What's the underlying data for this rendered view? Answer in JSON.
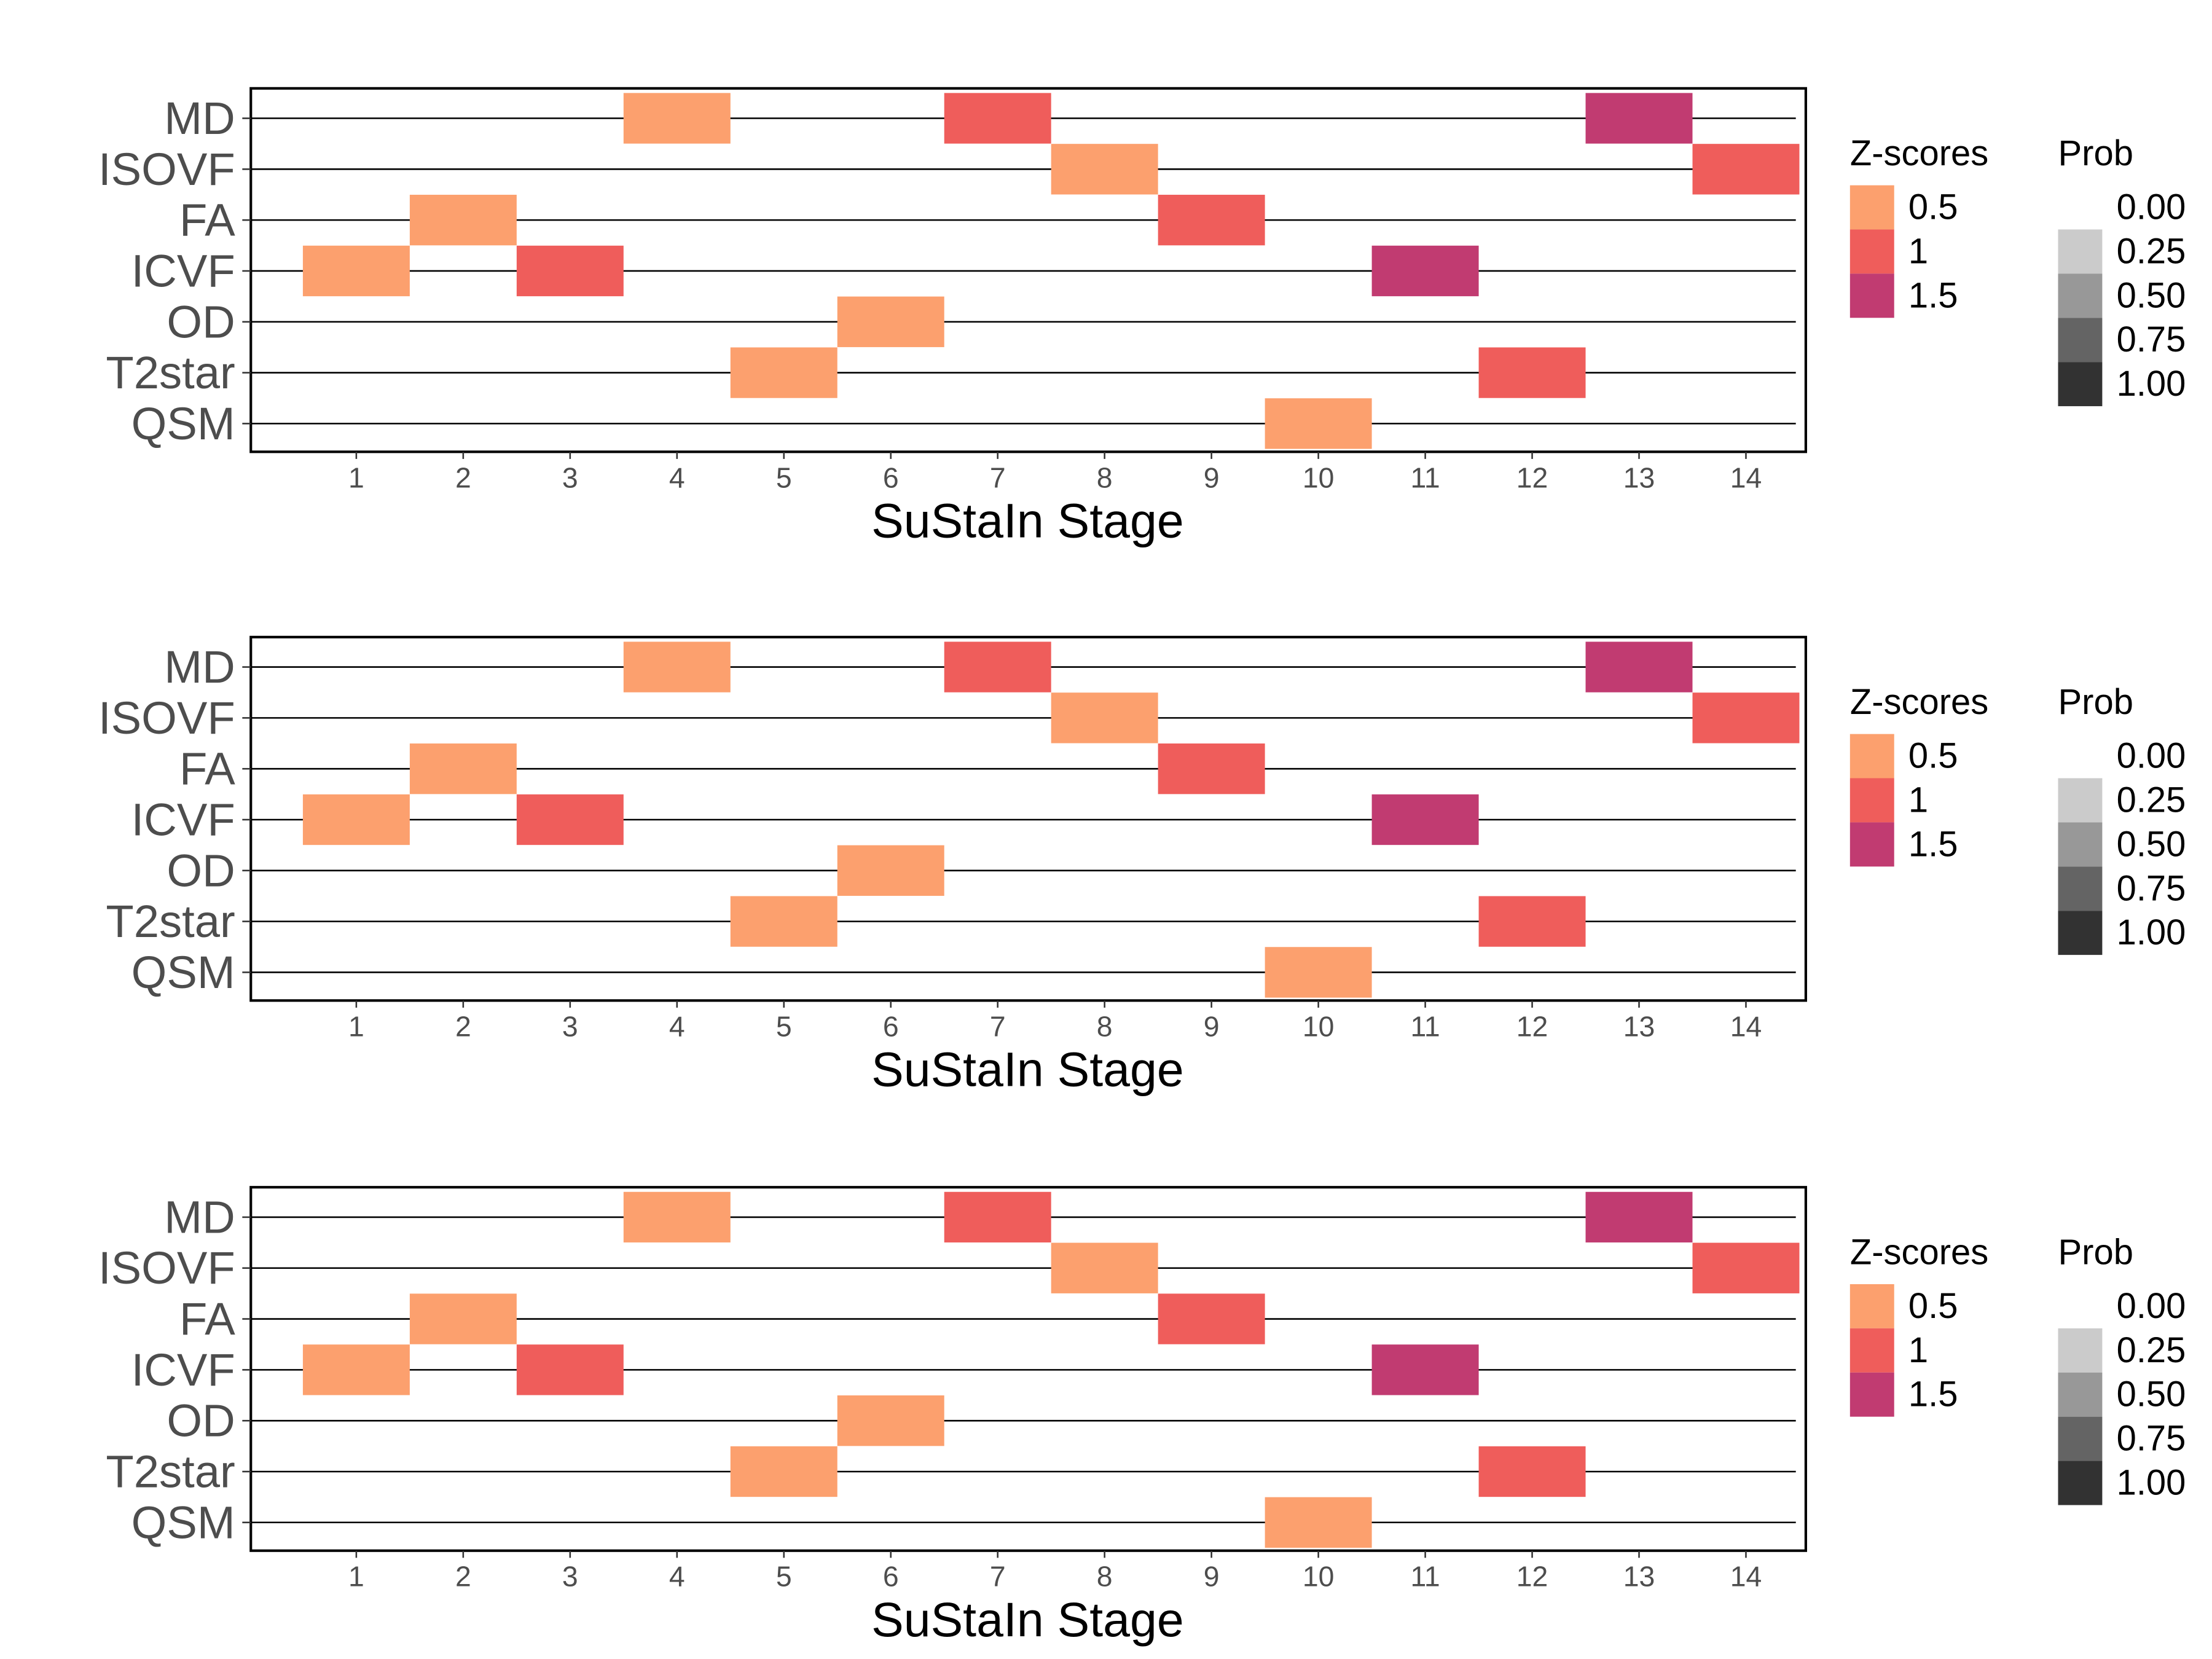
{
  "chart_data": [
    {
      "type": "heatmap",
      "title": "",
      "xlabel": "SuStaIn Stage",
      "ylabel": "",
      "x_categories": [
        "1",
        "2",
        "3",
        "4",
        "5",
        "6",
        "7",
        "8",
        "9",
        "10",
        "11",
        "12",
        "13",
        "14"
      ],
      "y_categories": [
        "MD",
        "ISOVF",
        "FA",
        "ICVF",
        "OD",
        "T2star",
        "QSM"
      ],
      "cells": [
        {
          "biomarker": "MD",
          "stage": 4,
          "z": 0.5
        },
        {
          "biomarker": "MD",
          "stage": 7,
          "z": 1
        },
        {
          "biomarker": "MD",
          "stage": 13,
          "z": 1.5
        },
        {
          "biomarker": "ISOVF",
          "stage": 8,
          "z": 0.5
        },
        {
          "biomarker": "ISOVF",
          "stage": 14,
          "z": 1
        },
        {
          "biomarker": "FA",
          "stage": 2,
          "z": 0.5
        },
        {
          "biomarker": "FA",
          "stage": 9,
          "z": 1
        },
        {
          "biomarker": "ICVF",
          "stage": 1,
          "z": 0.5
        },
        {
          "biomarker": "ICVF",
          "stage": 3,
          "z": 1
        },
        {
          "biomarker": "ICVF",
          "stage": 11,
          "z": 1.5
        },
        {
          "biomarker": "OD",
          "stage": 6,
          "z": 0.5
        },
        {
          "biomarker": "T2star",
          "stage": 5,
          "z": 0.5
        },
        {
          "biomarker": "T2star",
          "stage": 12,
          "z": 1
        },
        {
          "biomarker": "QSM",
          "stage": 10,
          "z": 0.5
        }
      ],
      "legends": [
        {
          "title": "Z-scores",
          "entries": [
            {
              "label": "0.5",
              "color": "#FCA06E"
            },
            {
              "label": "1",
              "color": "#EF5D5B"
            },
            {
              "label": "1.5",
              "color": "#C13B71"
            }
          ]
        },
        {
          "title": "Prob",
          "entries": [
            {
              "label": "0.00",
              "color": "#FFFFFF"
            },
            {
              "label": "0.25",
              "color": "#CBCBCB"
            },
            {
              "label": "0.50",
              "color": "#989898"
            },
            {
              "label": "0.75",
              "color": "#646464"
            },
            {
              "label": "1.00",
              "color": "#323232"
            }
          ]
        }
      ],
      "legend_position": "right",
      "grid": false
    },
    {
      "type": "heatmap",
      "title": "",
      "xlabel": "SuStaIn Stage",
      "ylabel": "",
      "x_categories": [
        "1",
        "2",
        "3",
        "4",
        "5",
        "6",
        "7",
        "8",
        "9",
        "10",
        "11",
        "12",
        "13",
        "14"
      ],
      "y_categories": [
        "MD",
        "ISOVF",
        "FA",
        "ICVF",
        "OD",
        "T2star",
        "QSM"
      ],
      "cells": [
        {
          "biomarker": "MD",
          "stage": 4,
          "z": 0.5
        },
        {
          "biomarker": "MD",
          "stage": 7,
          "z": 1
        },
        {
          "biomarker": "MD",
          "stage": 13,
          "z": 1.5
        },
        {
          "biomarker": "ISOVF",
          "stage": 8,
          "z": 0.5
        },
        {
          "biomarker": "ISOVF",
          "stage": 14,
          "z": 1
        },
        {
          "biomarker": "FA",
          "stage": 2,
          "z": 0.5
        },
        {
          "biomarker": "FA",
          "stage": 9,
          "z": 1
        },
        {
          "biomarker": "ICVF",
          "stage": 1,
          "z": 0.5
        },
        {
          "biomarker": "ICVF",
          "stage": 3,
          "z": 1
        },
        {
          "biomarker": "ICVF",
          "stage": 11,
          "z": 1.5
        },
        {
          "biomarker": "OD",
          "stage": 6,
          "z": 0.5
        },
        {
          "biomarker": "T2star",
          "stage": 5,
          "z": 0.5
        },
        {
          "biomarker": "T2star",
          "stage": 12,
          "z": 1
        },
        {
          "biomarker": "QSM",
          "stage": 10,
          "z": 0.5
        }
      ],
      "legends": [
        {
          "title": "Z-scores",
          "entries": [
            {
              "label": "0.5",
              "color": "#FCA06E"
            },
            {
              "label": "1",
              "color": "#EF5D5B"
            },
            {
              "label": "1.5",
              "color": "#C13B71"
            }
          ]
        },
        {
          "title": "Prob",
          "entries": [
            {
              "label": "0.00",
              "color": "#FFFFFF"
            },
            {
              "label": "0.25",
              "color": "#CBCBCB"
            },
            {
              "label": "0.50",
              "color": "#989898"
            },
            {
              "label": "0.75",
              "color": "#646464"
            },
            {
              "label": "1.00",
              "color": "#323232"
            }
          ]
        }
      ],
      "legend_position": "right",
      "grid": false
    },
    {
      "type": "heatmap",
      "title": "",
      "xlabel": "SuStaIn Stage",
      "ylabel": "",
      "x_categories": [
        "1",
        "2",
        "3",
        "4",
        "5",
        "6",
        "7",
        "8",
        "9",
        "10",
        "11",
        "12",
        "13",
        "14"
      ],
      "y_categories": [
        "MD",
        "ISOVF",
        "FA",
        "ICVF",
        "OD",
        "T2star",
        "QSM"
      ],
      "cells": [
        {
          "biomarker": "MD",
          "stage": 4,
          "z": 0.5
        },
        {
          "biomarker": "MD",
          "stage": 7,
          "z": 1
        },
        {
          "biomarker": "MD",
          "stage": 13,
          "z": 1.5
        },
        {
          "biomarker": "ISOVF",
          "stage": 8,
          "z": 0.5
        },
        {
          "biomarker": "ISOVF",
          "stage": 14,
          "z": 1
        },
        {
          "biomarker": "FA",
          "stage": 2,
          "z": 0.5
        },
        {
          "biomarker": "FA",
          "stage": 9,
          "z": 1
        },
        {
          "biomarker": "ICVF",
          "stage": 1,
          "z": 0.5
        },
        {
          "biomarker": "ICVF",
          "stage": 3,
          "z": 1
        },
        {
          "biomarker": "ICVF",
          "stage": 11,
          "z": 1.5
        },
        {
          "biomarker": "OD",
          "stage": 6,
          "z": 0.5
        },
        {
          "biomarker": "T2star",
          "stage": 5,
          "z": 0.5
        },
        {
          "biomarker": "T2star",
          "stage": 12,
          "z": 1
        },
        {
          "biomarker": "QSM",
          "stage": 10,
          "z": 0.5
        }
      ],
      "legends": [
        {
          "title": "Z-scores",
          "entries": [
            {
              "label": "0.5",
              "color": "#FCA06E"
            },
            {
              "label": "1",
              "color": "#EF5D5B"
            },
            {
              "label": "1.5",
              "color": "#C13B71"
            }
          ]
        },
        {
          "title": "Prob",
          "entries": [
            {
              "label": "0.00",
              "color": "#FFFFFF"
            },
            {
              "label": "0.25",
              "color": "#CBCBCB"
            },
            {
              "label": "0.50",
              "color": "#989898"
            },
            {
              "label": "0.75",
              "color": "#646464"
            },
            {
              "label": "1.00",
              "color": "#323232"
            }
          ]
        }
      ],
      "legend_position": "right",
      "grid": false
    }
  ]
}
